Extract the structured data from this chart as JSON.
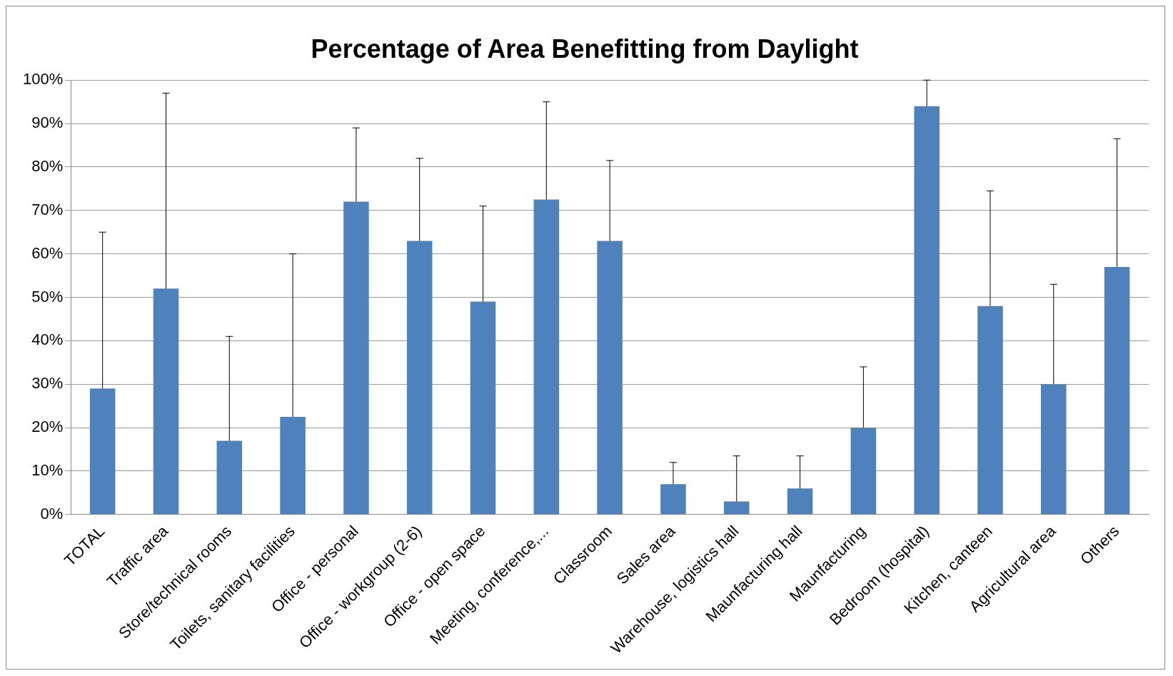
{
  "chart_data": {
    "type": "bar",
    "title": "Percentage of Area Benefitting from Daylight",
    "categories": [
      "TOTAL",
      "Traffic area",
      "Store/technical rooms",
      "Toilets, sanitary facilities",
      "Office - personal",
      "Office - workgroup (2-6)",
      "Office - open space",
      "Meeting, conference,...",
      "Classroom",
      "Sales area",
      "Warehouse, logistics hall",
      "Maunfacturing hall",
      "Maunfacturing",
      "Bedroom (hospital)",
      "Kitchen, canteen",
      "Agricultural area",
      "Others"
    ],
    "values": [
      29,
      52,
      17,
      22.5,
      72,
      63,
      49,
      72.5,
      63,
      7,
      3,
      6,
      20,
      94,
      48,
      30,
      57
    ],
    "errors": [
      [
        29,
        65
      ],
      [
        52,
        97
      ],
      [
        17,
        41
      ],
      [
        22.5,
        60
      ],
      [
        72,
        89
      ],
      [
        63,
        82
      ],
      [
        49,
        71
      ],
      [
        72.5,
        95
      ],
      [
        63,
        81.5
      ],
      [
        7,
        12
      ],
      [
        3,
        13.5
      ],
      [
        6,
        13.5
      ],
      [
        20,
        34
      ],
      [
        94,
        100
      ],
      [
        48,
        74.5
      ],
      [
        30,
        53
      ],
      [
        57,
        86.5
      ]
    ],
    "color": "#4f81bd",
    "ylim": [
      0,
      100
    ],
    "yticks": [
      {
        "value": 0,
        "label": "0%"
      },
      {
        "value": 10,
        "label": "10%"
      },
      {
        "value": 20,
        "label": "20%"
      },
      {
        "value": 30,
        "label": "30%"
      },
      {
        "value": 40,
        "label": "40%"
      },
      {
        "value": 50,
        "label": "50%"
      },
      {
        "value": 60,
        "label": "60%"
      },
      {
        "value": 70,
        "label": "70%"
      },
      {
        "value": 80,
        "label": "80%"
      },
      {
        "value": 90,
        "label": "90%"
      },
      {
        "value": 100,
        "label": "100%"
      }
    ],
    "grid": "y",
    "legend": false
  }
}
